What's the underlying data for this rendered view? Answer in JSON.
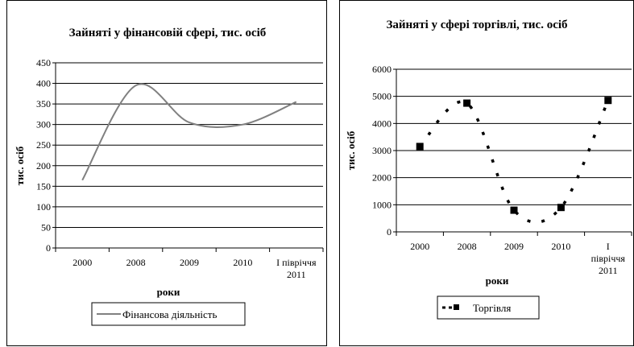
{
  "chart_data": [
    {
      "type": "line",
      "title": "Зайняті у фінансовій сфері, тис. осіб",
      "xlabel": "роки",
      "ylabel": "тис. осіб",
      "categories": [
        "2000",
        "2008",
        "2009",
        "2010",
        "I півріччя 2011"
      ],
      "category_lines": [
        [
          "2000"
        ],
        [
          "2008"
        ],
        [
          "2009"
        ],
        [
          "2010"
        ],
        [
          "I півріччя",
          "2011"
        ]
      ],
      "ylim": [
        0,
        450
      ],
      "yticks": [
        0,
        50,
        100,
        150,
        200,
        250,
        300,
        350,
        400,
        450
      ],
      "series": [
        {
          "name": "Фінансова діяльність",
          "values": [
            165,
            395,
            305,
            300,
            355
          ]
        }
      ],
      "grid": true,
      "legend": "bottom",
      "line_color": "#808080"
    },
    {
      "type": "line",
      "title": "Зайняті у сфері торгівлі, тис. осіб",
      "xlabel": "роки",
      "ylabel": "тис. осіб",
      "categories": [
        "2000",
        "2008",
        "2009",
        "2010",
        "I півріччя 2011"
      ],
      "category_lines": [
        [
          "2000"
        ],
        [
          "2008"
        ],
        [
          "2009"
        ],
        [
          "2010"
        ],
        [
          "I",
          "півріччя",
          "2011"
        ]
      ],
      "ylim": [
        0,
        6000
      ],
      "yticks": [
        0,
        1000,
        2000,
        3000,
        4000,
        5000,
        6000
      ],
      "series": [
        {
          "name": "Торгівля",
          "values": [
            3150,
            4750,
            800,
            900,
            4850
          ]
        }
      ],
      "grid": true,
      "legend": "bottom",
      "line_color": "#000000"
    }
  ]
}
